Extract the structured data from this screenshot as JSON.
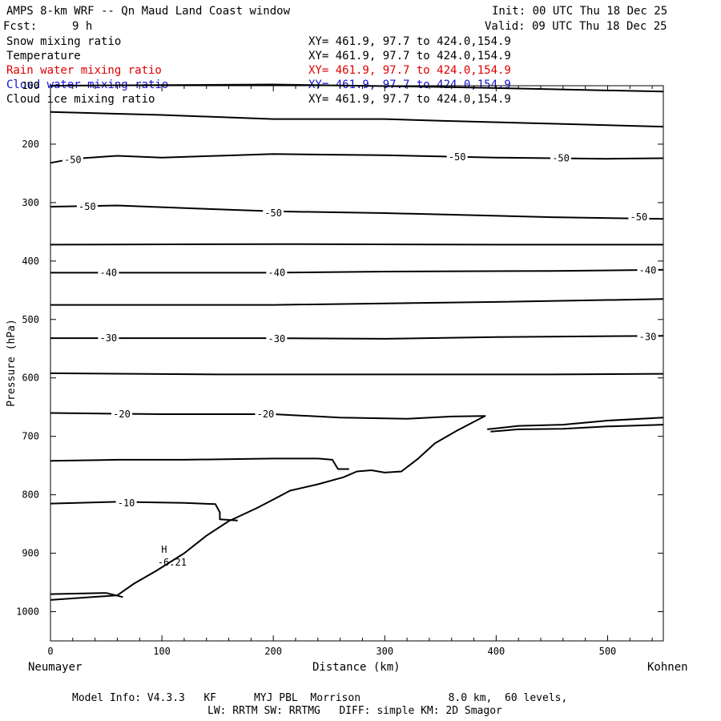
{
  "header": {
    "title": "AMPS 8-km WRF -- Qn Maud Land Coast window",
    "init": "Init: 00 UTC Thu 18 Dec 25",
    "fcst_label": "Fcst:",
    "fcst_value": "9 h",
    "valid": "Valid: 09 UTC Thu 18 Dec 25"
  },
  "fields": [
    {
      "name": "Snow mixing ratio",
      "xy": "XY= 461.9, 97.7 to 424.0,154.9",
      "color": "#000000"
    },
    {
      "name": "Temperature",
      "xy": "XY= 461.9, 97.7 to 424.0,154.9",
      "color": "#000000"
    },
    {
      "name": "Rain water mixing ratio",
      "xy": "XY= 461.9, 97.7 to 424.0,154.9",
      "color": "#e00000"
    },
    {
      "name": "Cloud water mixing ratio",
      "xy": "XY= 461.9, 97.7 to 424.0,154.9",
      "color": "#1010d0"
    },
    {
      "name": "Cloud ice mixing ratio",
      "xy": "XY= 461.9, 97.7 to 424.0,154.9",
      "color": "#000000"
    }
  ],
  "chart_data": {
    "type": "line",
    "xlabel": "Distance (km)",
    "ylabel": "Pressure (hPa)",
    "xlim": [
      0,
      550
    ],
    "ylim": [
      1050,
      100
    ],
    "x_ticks": [
      0,
      100,
      200,
      300,
      400,
      500
    ],
    "y_ticks": [
      100,
      200,
      300,
      400,
      500,
      600,
      700,
      800,
      900,
      1000
    ],
    "endpoint_left": "Neumayer",
    "endpoint_right": "Kohnen",
    "contours": [
      {
        "points": [
          [
            0,
            100
          ],
          [
            200,
            98
          ],
          [
            350,
            102
          ],
          [
            450,
            106
          ],
          [
            550,
            110
          ]
        ]
      },
      {
        "points": [
          [
            0,
            145
          ],
          [
            100,
            150
          ],
          [
            200,
            157
          ],
          [
            300,
            157
          ],
          [
            350,
            160
          ],
          [
            450,
            165
          ],
          [
            550,
            170
          ]
        ]
      },
      {
        "points": [
          [
            0,
            232
          ],
          [
            20,
            225
          ],
          [
            60,
            220
          ],
          [
            100,
            223
          ],
          [
            150,
            220
          ],
          [
            200,
            217
          ],
          [
            300,
            219
          ],
          [
            400,
            223
          ],
          [
            500,
            225
          ],
          [
            550,
            224
          ]
        ]
      },
      {
        "points": [
          [
            0,
            307
          ],
          [
            60,
            305
          ],
          [
            130,
            310
          ],
          [
            200,
            315
          ],
          [
            300,
            318
          ],
          [
            450,
            325
          ],
          [
            550,
            328
          ]
        ]
      },
      {
        "points": [
          [
            0,
            372
          ],
          [
            200,
            371
          ],
          [
            400,
            372
          ],
          [
            550,
            372
          ]
        ]
      },
      {
        "points": [
          [
            0,
            420
          ],
          [
            100,
            420
          ],
          [
            200,
            420
          ],
          [
            300,
            418
          ],
          [
            450,
            417
          ],
          [
            550,
            415
          ]
        ]
      },
      {
        "points": [
          [
            0,
            475
          ],
          [
            200,
            475
          ],
          [
            400,
            470
          ],
          [
            550,
            465
          ]
        ]
      },
      {
        "points": [
          [
            0,
            532
          ],
          [
            100,
            532
          ],
          [
            200,
            532
          ],
          [
            300,
            533
          ],
          [
            400,
            530
          ],
          [
            550,
            528
          ]
        ]
      },
      {
        "points": [
          [
            0,
            592
          ],
          [
            150,
            594
          ],
          [
            300,
            594
          ],
          [
            450,
            594
          ],
          [
            550,
            593
          ]
        ]
      },
      {
        "points": [
          [
            0,
            660
          ],
          [
            100,
            662
          ],
          [
            200,
            662
          ],
          [
            260,
            668
          ],
          [
            320,
            670
          ],
          [
            360,
            666
          ],
          [
            390,
            665
          ],
          [
            365,
            690
          ],
          [
            345,
            712
          ],
          [
            330,
            738
          ],
          [
            315,
            760
          ],
          [
            300,
            762
          ],
          [
            288,
            758
          ],
          [
            275,
            760
          ],
          [
            263,
            770
          ],
          [
            240,
            782
          ],
          [
            215,
            793
          ],
          [
            200,
            808
          ],
          [
            185,
            823
          ],
          [
            160,
            845
          ],
          [
            140,
            870
          ],
          [
            120,
            900
          ],
          [
            95,
            930
          ],
          [
            75,
            952
          ],
          [
            60,
            972
          ],
          [
            0,
            980
          ]
        ]
      },
      {
        "points": [
          [
            0,
            742
          ],
          [
            60,
            740
          ],
          [
            120,
            740
          ],
          [
            200,
            738
          ],
          [
            240,
            738
          ],
          [
            253,
            740
          ],
          [
            258,
            756
          ],
          [
            268,
            756
          ]
        ]
      },
      {
        "points": [
          [
            0,
            815
          ],
          [
            60,
            812
          ],
          [
            120,
            814
          ],
          [
            148,
            816
          ],
          [
            152,
            830
          ],
          [
            152,
            842
          ],
          [
            168,
            844
          ]
        ]
      },
      {
        "points": [
          [
            0,
            970
          ],
          [
            50,
            968
          ],
          [
            65,
            975
          ]
        ]
      },
      {
        "points": [
          [
            395,
            692
          ],
          [
            420,
            688
          ],
          [
            460,
            687
          ],
          [
            500,
            683
          ],
          [
            550,
            680
          ]
        ]
      },
      {
        "points": [
          [
            392,
            688
          ],
          [
            420,
            682
          ],
          [
            460,
            680
          ],
          [
            500,
            673
          ],
          [
            550,
            668
          ]
        ]
      }
    ],
    "labels": [
      {
        "text": "-50",
        "x": 20,
        "y": 227
      },
      {
        "text": "-50",
        "x": 365,
        "y": 222
      },
      {
        "text": "-50",
        "x": 458,
        "y": 224
      },
      {
        "text": "-50",
        "x": 33,
        "y": 307
      },
      {
        "text": "-50",
        "x": 200,
        "y": 318
      },
      {
        "text": "-50",
        "x": 528,
        "y": 325
      },
      {
        "text": "-40",
        "x": 52,
        "y": 420
      },
      {
        "text": "-40",
        "x": 203,
        "y": 420
      },
      {
        "text": "-40",
        "x": 536,
        "y": 416
      },
      {
        "text": "-30",
        "x": 52,
        "y": 532
      },
      {
        "text": "-30",
        "x": 203,
        "y": 533
      },
      {
        "text": "-30",
        "x": 536,
        "y": 530
      },
      {
        "text": "-20",
        "x": 64,
        "y": 662
      },
      {
        "text": "-20",
        "x": 193,
        "y": 662
      },
      {
        "text": "-10",
        "x": 68,
        "y": 814
      }
    ],
    "extrema": [
      {
        "mark": "H",
        "value": "-6.21",
        "x": 102,
        "y": 910
      }
    ]
  },
  "footer": {
    "model_info": "Model Info: V4.3.3   KF      MYJ PBL  Morrison              8.0 km,  60 levels,",
    "physics": "LW: RRTM SW: RRTMG   DIFF: simple KM: 2D Smagor"
  }
}
